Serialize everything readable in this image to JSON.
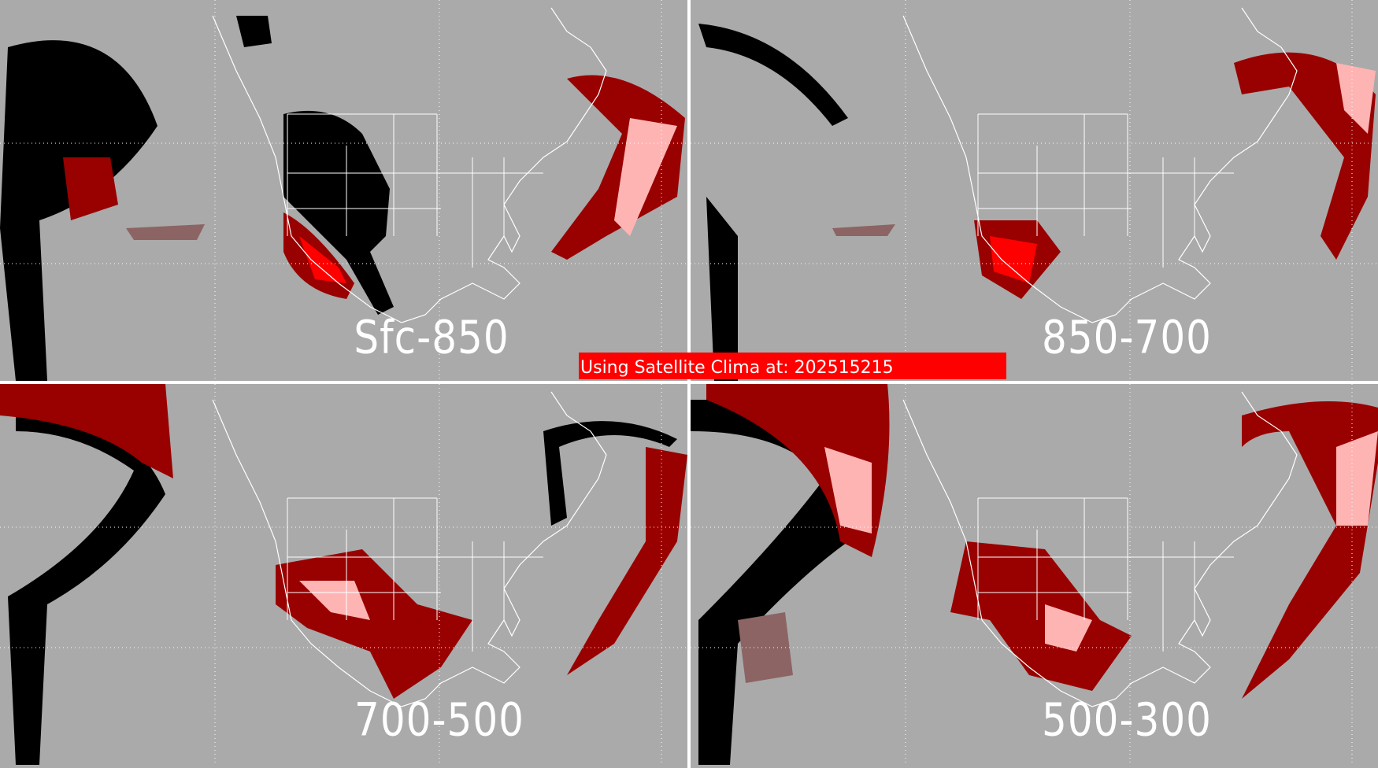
{
  "panels": [
    {
      "label": "Sfc-850"
    },
    {
      "label": "850-700"
    },
    {
      "label": "700-500"
    },
    {
      "label": "500-300"
    }
  ],
  "banner": {
    "text": "Using Satellite Clima at: 202515215",
    "color": "#ff0000"
  },
  "colors": {
    "background": "#aaaaaa",
    "category_black": "#000000",
    "category_darkred": "#990000",
    "category_brown": "#8c6464",
    "category_red": "#ff0000",
    "category_pink": "#ffb4b4",
    "boundaries": "#ffffff"
  }
}
